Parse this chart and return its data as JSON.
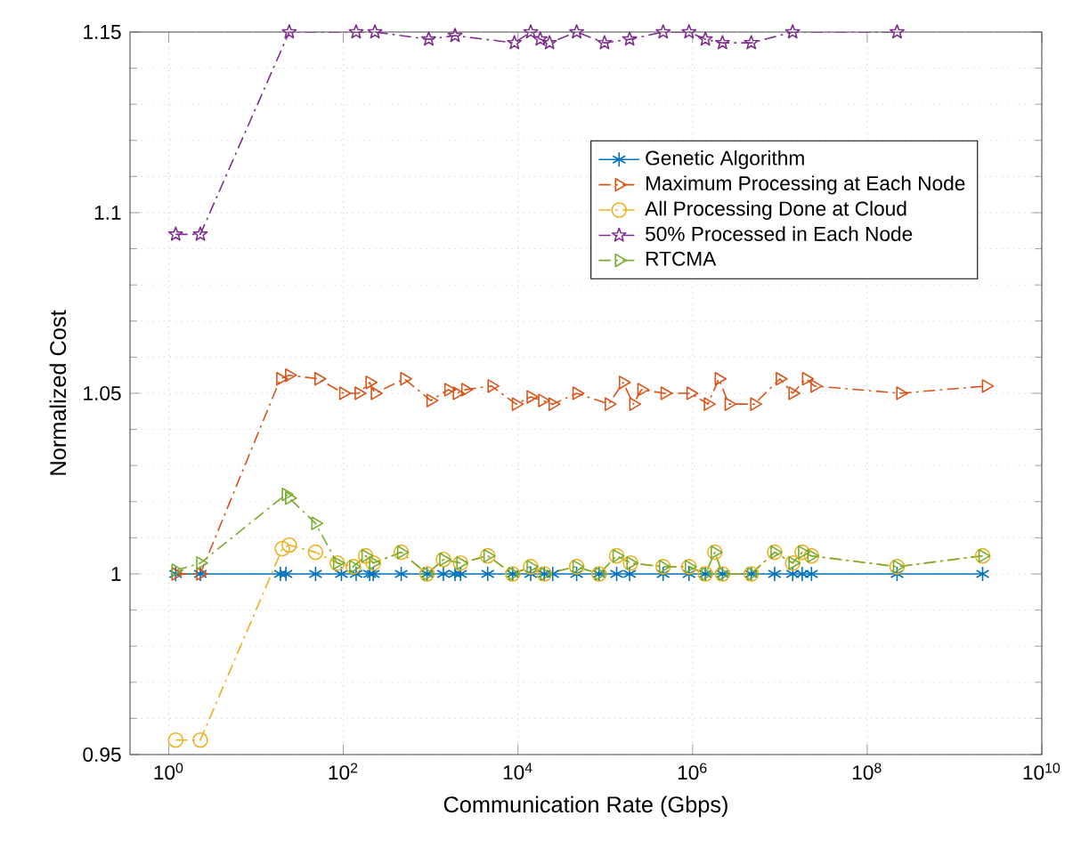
{
  "chart_data": {
    "type": "line",
    "xlabel": "Communication Rate (Gbps)",
    "ylabel": "Normalized Cost",
    "log": "x",
    "grid": true,
    "legend": "top right",
    "xlim": [
      0.36,
      10000000000
    ],
    "ylim": [
      0.95,
      1.15
    ],
    "xticks": [
      {
        "value": 1,
        "label": "10$^{0}$"
      },
      {
        "value": 100,
        "label": "10$^{2}$"
      },
      {
        "value": 10000,
        "label": "10$^{4}$"
      },
      {
        "value": 1000000,
        "label": "10$^{6}$"
      },
      {
        "value": 100000000,
        "label": "10$^{8}$"
      },
      {
        "value": 10000000000,
        "label": "10$^{10}$"
      }
    ],
    "yticks": [
      0.95,
      1,
      1.05,
      1.1,
      1.15
    ],
    "series": [
      {
        "name": "Genetic Algorithm",
        "color": "#0072bd",
        "marker": "cross",
        "line_style": "solid",
        "x": [
          1.2,
          2.3,
          19,
          22,
          48,
          95,
          140,
          200,
          220,
          460,
          910,
          1400,
          1900,
          2200,
          4500,
          8700,
          14000,
          20000,
          25000,
          47000,
          85000,
          135000,
          190000,
          460000,
          910000,
          1400000,
          2200000,
          4700000,
          8700000,
          14000000,
          18000000,
          23000000,
          220000000,
          2100000000
        ],
        "values": [
          1,
          1,
          1,
          1,
          1,
          1,
          1,
          1,
          1,
          1,
          1,
          1,
          1,
          1,
          1,
          1,
          1,
          1,
          1,
          1,
          1,
          1,
          1,
          1,
          1,
          1,
          1,
          1,
          1,
          1,
          1,
          1,
          1,
          1
        ]
      },
      {
        "name": "Maximum Processing at Each Node",
        "color": "#d95319",
        "marker": "triangle",
        "line_style": "dashed",
        "x": [
          1.2,
          2.3,
          19,
          24,
          52,
          100,
          150,
          200,
          230,
          500,
          1000,
          1600,
          2000,
          2500,
          5000,
          9500,
          14000,
          19000,
          25000,
          47000,
          110000,
          160000,
          210000,
          260000,
          480000,
          950000,
          1500000,
          2000000,
          2600000,
          5100000,
          10000000,
          14000000,
          20000000,
          25000000,
          240000000,
          2300000000
        ],
        "values": [
          1,
          1,
          1.054,
          1.055,
          1.054,
          1.05,
          1.05,
          1.053,
          1.05,
          1.054,
          1.048,
          1.051,
          1.05,
          1.051,
          1.052,
          1.047,
          1.049,
          1.048,
          1.047,
          1.05,
          1.047,
          1.053,
          1.047,
          1.051,
          1.05,
          1.05,
          1.047,
          1.054,
          1.047,
          1.047,
          1.054,
          1.05,
          1.054,
          1.052,
          1.05,
          1.052
        ]
      },
      {
        "name": "All Processing Done at Cloud",
        "color": "#edb120",
        "marker": "circle",
        "line_style": "dashed",
        "x": [
          1.2,
          2.3,
          20,
          24,
          48,
          85,
          130,
          180,
          220,
          460,
          910,
          1400,
          2200,
          4500,
          8700,
          14000,
          20000,
          47000,
          85000,
          135000,
          195000,
          460000,
          910000,
          1400000,
          1800000,
          2200000,
          4700000,
          8700000,
          14000000,
          18000000,
          23000000,
          220000000,
          2100000000
        ],
        "values": [
          0.954,
          0.954,
          1.007,
          1.008,
          1.006,
          1.003,
          1.002,
          1.005,
          1.003,
          1.006,
          1.0,
          1.004,
          1.003,
          1.005,
          1.0,
          1.002,
          1.0,
          1.002,
          1.0,
          1.005,
          1.003,
          1.002,
          1.002,
          1.0,
          1.006,
          1.0,
          1.0,
          1.006,
          1.003,
          1.006,
          1.005,
          1.002,
          1.005
        ]
      },
      {
        "name": "50% Processed in Each Node",
        "color": "#7e2f8e",
        "marker": "star",
        "line_style": "dashed",
        "x": [
          1.2,
          2.3,
          24,
          140,
          230,
          950,
          1900,
          9100,
          14000,
          18000,
          23000,
          47000,
          98000,
          190000,
          460000,
          910000,
          1400000,
          2200000,
          4700000,
          14000000,
          220000000
        ],
        "values": [
          1.094,
          1.094,
          1.15,
          1.15,
          1.15,
          1.148,
          1.149,
          1.147,
          1.15,
          1.148,
          1.147,
          1.15,
          1.147,
          1.148,
          1.15,
          1.15,
          1.148,
          1.147,
          1.147,
          1.15,
          1.15
        ]
      },
      {
        "name": "RTCMA",
        "color": "#77ac30",
        "marker": "triangle",
        "line_style": "dashed",
        "x": [
          1.2,
          2.3,
          22,
          24,
          48,
          85,
          130,
          180,
          220,
          460,
          910,
          1400,
          2200,
          4500,
          8700,
          14000,
          20000,
          47000,
          85000,
          135000,
          195000,
          460000,
          910000,
          1400000,
          1800000,
          2200000,
          4700000,
          8700000,
          14000000,
          18000000,
          23000000,
          220000000,
          2100000000
        ],
        "values": [
          1.001,
          1.003,
          1.022,
          1.021,
          1.014,
          1.003,
          1.002,
          1.005,
          1.003,
          1.006,
          1.0,
          1.004,
          1.003,
          1.005,
          1.0,
          1.002,
          1.0,
          1.002,
          1.0,
          1.005,
          1.003,
          1.002,
          1.002,
          1.0,
          1.006,
          1.0,
          1.0,
          1.006,
          1.003,
          1.006,
          1.005,
          1.002,
          1.005
        ]
      }
    ]
  }
}
